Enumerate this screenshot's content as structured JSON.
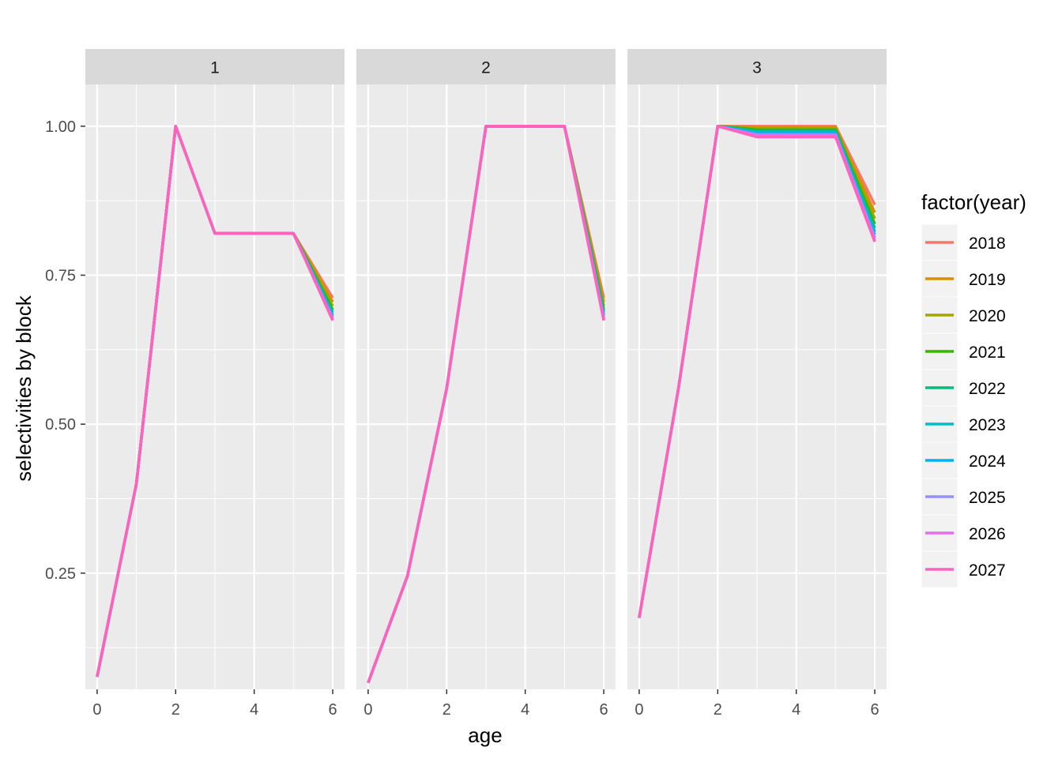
{
  "chart_data": {
    "type": "line",
    "xlabel": "age",
    "ylabel": "selectivities by block",
    "xlim": [
      -0.3,
      6.3
    ],
    "ylim": [
      0.055,
      1.07
    ],
    "x_ticks": [
      0,
      2,
      4,
      6
    ],
    "y_ticks": [
      0.25,
      0.5,
      0.75,
      1.0
    ],
    "y_tick_labels": [
      "0.25",
      "0.50",
      "0.75",
      "1.00"
    ],
    "x_tick_labels": [
      "0",
      "2",
      "4",
      "6"
    ],
    "grid": true,
    "legend": {
      "title": "factor(year)",
      "position": "right",
      "entries": [
        "2018",
        "2019",
        "2020",
        "2021",
        "2022",
        "2023",
        "2024",
        "2025",
        "2026",
        "2027"
      ],
      "colors": [
        "#F8766D",
        "#D89000",
        "#A3A500",
        "#39B600",
        "#00BF7D",
        "#00BFC4",
        "#00B0F6",
        "#9590FF",
        "#E76BF3",
        "#FF62BC"
      ]
    },
    "facets": [
      {
        "label": "1",
        "x": [
          0,
          1,
          2,
          3,
          4,
          5,
          6
        ],
        "series": [
          {
            "name": "2018",
            "values": [
              0.076,
              0.4,
              1.0,
              0.82,
              0.82,
              0.82,
              0.712
            ]
          },
          {
            "name": "2019",
            "values": [
              0.076,
              0.4,
              1.0,
              0.82,
              0.82,
              0.82,
              0.705
            ]
          },
          {
            "name": "2020",
            "values": [
              0.076,
              0.4,
              1.0,
              0.82,
              0.82,
              0.82,
              0.698
            ]
          },
          {
            "name": "2021",
            "values": [
              0.076,
              0.4,
              1.0,
              0.82,
              0.82,
              0.82,
              0.692
            ]
          },
          {
            "name": "2022",
            "values": [
              0.076,
              0.4,
              1.0,
              0.82,
              0.82,
              0.82,
              0.688
            ]
          },
          {
            "name": "2023",
            "values": [
              0.076,
              0.4,
              1.0,
              0.82,
              0.82,
              0.82,
              0.684
            ]
          },
          {
            "name": "2024",
            "values": [
              0.076,
              0.4,
              1.0,
              0.82,
              0.82,
              0.82,
              0.681
            ]
          },
          {
            "name": "2025",
            "values": [
              0.076,
              0.4,
              1.0,
              0.82,
              0.82,
              0.82,
              0.678
            ]
          },
          {
            "name": "2026",
            "values": [
              0.076,
              0.4,
              1.0,
              0.82,
              0.82,
              0.82,
              0.676
            ]
          },
          {
            "name": "2027",
            "values": [
              0.076,
              0.4,
              1.0,
              0.82,
              0.82,
              0.82,
              0.674
            ]
          }
        ]
      },
      {
        "label": "2",
        "x": [
          0,
          1,
          2,
          3,
          4,
          5,
          6
        ],
        "series": [
          {
            "name": "2018",
            "values": [
              0.066,
              0.245,
              0.56,
              1.0,
              1.0,
              1.0,
              0.712
            ]
          },
          {
            "name": "2019",
            "values": [
              0.066,
              0.245,
              0.56,
              1.0,
              1.0,
              1.0,
              0.705
            ]
          },
          {
            "name": "2020",
            "values": [
              0.066,
              0.245,
              0.56,
              1.0,
              1.0,
              1.0,
              0.698
            ]
          },
          {
            "name": "2021",
            "values": [
              0.066,
              0.245,
              0.56,
              1.0,
              1.0,
              1.0,
              0.692
            ]
          },
          {
            "name": "2022",
            "values": [
              0.066,
              0.245,
              0.56,
              1.0,
              1.0,
              1.0,
              0.688
            ]
          },
          {
            "name": "2023",
            "values": [
              0.066,
              0.245,
              0.56,
              1.0,
              1.0,
              1.0,
              0.684
            ]
          },
          {
            "name": "2024",
            "values": [
              0.066,
              0.245,
              0.56,
              1.0,
              1.0,
              1.0,
              0.681
            ]
          },
          {
            "name": "2025",
            "values": [
              0.066,
              0.245,
              0.56,
              1.0,
              1.0,
              1.0,
              0.678
            ]
          },
          {
            "name": "2026",
            "values": [
              0.066,
              0.245,
              0.56,
              1.0,
              1.0,
              1.0,
              0.676
            ]
          },
          {
            "name": "2027",
            "values": [
              0.066,
              0.245,
              0.56,
              1.0,
              1.0,
              1.0,
              0.674
            ]
          }
        ]
      },
      {
        "label": "3",
        "x": [
          0,
          1,
          2,
          3,
          4,
          5,
          6
        ],
        "series": [
          {
            "name": "2018",
            "values": [
              0.175,
              0.56,
              1.0,
              1.0,
              1.0,
              1.0,
              0.868
            ]
          },
          {
            "name": "2019",
            "values": [
              0.175,
              0.56,
              1.0,
              0.998,
              0.998,
              0.998,
              0.855
            ]
          },
          {
            "name": "2020",
            "values": [
              0.175,
              0.56,
              1.0,
              0.996,
              0.996,
              0.996,
              0.845
            ]
          },
          {
            "name": "2021",
            "values": [
              0.175,
              0.56,
              1.0,
              0.994,
              0.994,
              0.994,
              0.836
            ]
          },
          {
            "name": "2022",
            "values": [
              0.175,
              0.56,
              1.0,
              0.992,
              0.992,
              0.992,
              0.829
            ]
          },
          {
            "name": "2023",
            "values": [
              0.175,
              0.56,
              1.0,
              0.99,
              0.99,
              0.99,
              0.823
            ]
          },
          {
            "name": "2024",
            "values": [
              0.175,
              0.56,
              1.0,
              0.988,
              0.988,
              0.988,
              0.818
            ]
          },
          {
            "name": "2025",
            "values": [
              0.175,
              0.56,
              1.0,
              0.986,
              0.986,
              0.986,
              0.813
            ]
          },
          {
            "name": "2026",
            "values": [
              0.175,
              0.56,
              1.0,
              0.984,
              0.984,
              0.984,
              0.809
            ]
          },
          {
            "name": "2027",
            "values": [
              0.175,
              0.56,
              1.0,
              0.982,
              0.982,
              0.982,
              0.806
            ]
          }
        ]
      }
    ]
  }
}
